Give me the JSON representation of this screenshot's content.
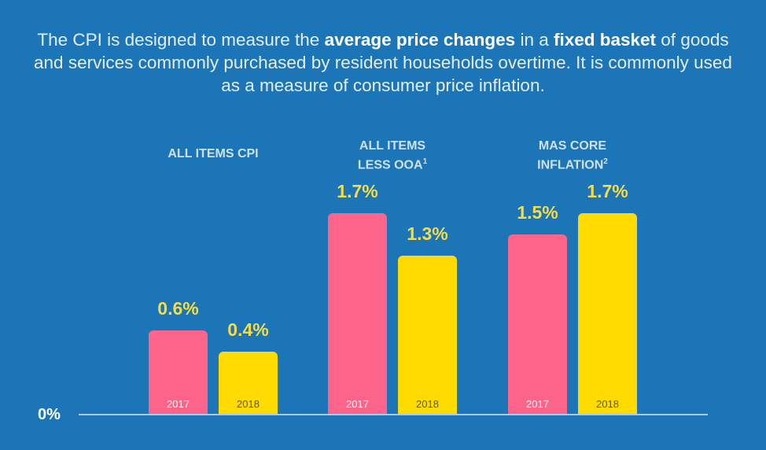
{
  "intro": {
    "segments": [
      {
        "text": "The CPI is designed to measure the ",
        "bold": false
      },
      {
        "text": "average price changes",
        "bold": true
      },
      {
        "text": " in a ",
        "bold": false
      },
      {
        "text": "fixed basket",
        "bold": true
      },
      {
        "text": " of goods and services commonly purchased by resident households overtime. It is commonly used as a measure of consumer price inflation.",
        "bold": false
      }
    ]
  },
  "chart_data": {
    "type": "bar",
    "categories": [
      {
        "label": "ALL ITEMS CPI",
        "sup": ""
      },
      {
        "label_line1": "ALL ITEMS",
        "label": "LESS OOA",
        "sup": "1"
      },
      {
        "label_line1": "MAS CORE",
        "label": "INFLATION",
        "sup": "2"
      }
    ],
    "series": [
      {
        "name": "2017",
        "color": "#fd6489",
        "text_color": "#ffffff",
        "values": [
          0.6,
          1.7,
          1.5
        ],
        "labels": [
          "0.6%",
          "1.7%",
          "1.5%"
        ]
      },
      {
        "name": "2018",
        "color": "#ffdb00",
        "text_color": "#5a5a3a",
        "values": [
          0.4,
          1.3,
          1.7
        ],
        "labels": [
          "0.4%",
          "1.3%",
          "1.7%"
        ]
      }
    ],
    "baseline_label": "0%",
    "unit": "%",
    "grid": false,
    "legend": "none"
  }
}
